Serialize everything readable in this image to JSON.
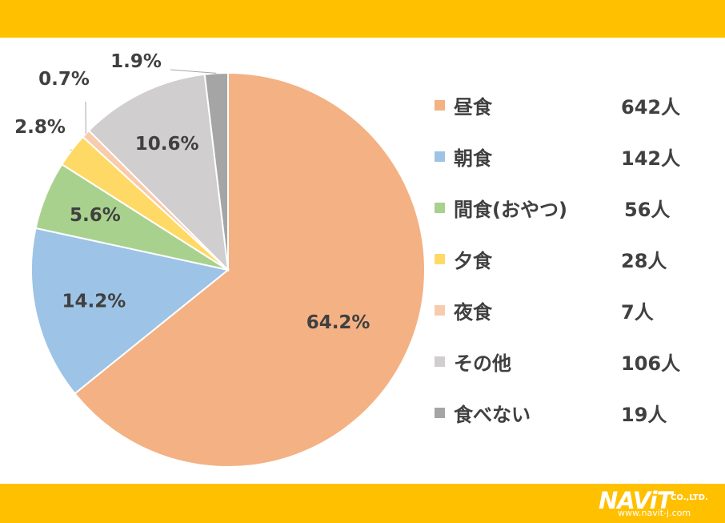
{
  "chart_data": {
    "type": "pie",
    "categories": [
      "昼食",
      "朝食",
      "間食(おやつ)",
      "夕食",
      "夜食",
      "その他",
      "食べない"
    ],
    "values": [
      642,
      142,
      56,
      28,
      7,
      106,
      19
    ],
    "percent_labels": [
      "64.2%",
      "14.2%",
      "5.6%",
      "2.8%",
      "0.7%",
      "10.6%",
      "1.9%"
    ],
    "count_labels": [
      "642人",
      "142人",
      "56人",
      "28人",
      "7人",
      "106人",
      "19人"
    ],
    "colors": [
      "#F4B183",
      "#9DC3E6",
      "#A9D18E",
      "#FFD966",
      "#F8CBAD",
      "#D0CECE",
      "#A5A5A5"
    ],
    "legend_position": "right",
    "start_angle": "top",
    "direction": "clockwise"
  },
  "theme": {
    "band_color": "#FFC000",
    "text_color": "#404040"
  },
  "logo": {
    "brand": "NAViT",
    "suffix": "CO.,LTD.",
    "url": "www.navit-j.com"
  }
}
